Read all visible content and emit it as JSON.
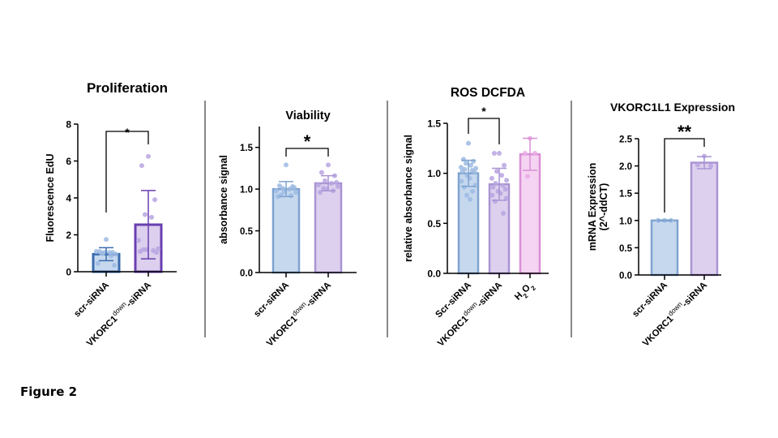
{
  "figure_label": "Figure 2",
  "colors": {
    "blue_fill": "#c5d8ee",
    "blue_edge": "#7fa3cf",
    "blue_dot": "#9dbbe3",
    "purple_fill": "#dcd0ee",
    "purple_edge": "#a993d3",
    "purple_dot": "#b7a4e0",
    "pink_fill": "#f5d3f2",
    "pink_edge": "#d98fd6",
    "pink_dot": "#eaa9e6",
    "dark_blue_edge": "#3a6cae",
    "dark_purple_edge": "#6a3fb0",
    "divider": "#888888"
  },
  "chart_data": [
    {
      "type": "bar",
      "title": "Proliferation",
      "xlabel": "",
      "ylabel": "Fluorescence EdU",
      "ylim": [
        0,
        8
      ],
      "yticks": [
        "0",
        "2",
        "4",
        "6",
        "8"
      ],
      "ytick_values": [
        0,
        2,
        4,
        6,
        8
      ],
      "categories": [
        "scr-siRNA",
        "VKORC1down-siRNA"
      ],
      "category_labels": [
        {
          "main": "scr-siRNA",
          "sup": "",
          "tail": ""
        },
        {
          "main": "VKORC1",
          "sup": "down",
          "tail": "-siRNA"
        }
      ],
      "values": [
        0.95,
        2.55
      ],
      "errors": [
        0.35,
        1.85
      ],
      "points": [
        [
          1.75,
          1.1,
          1.05,
          1.0,
          1.05,
          1.1,
          0.95,
          1.0,
          0.85,
          0.45,
          0.35,
          1.05
        ],
        [
          6.25,
          5.75,
          3.9,
          3.1,
          2.95,
          1.7,
          1.25,
          1.2,
          1.15,
          1.1,
          1.05,
          1.2
        ]
      ],
      "significance": [
        {
          "from": 0,
          "to": 1,
          "label": "*"
        }
      ],
      "bar_style": [
        "dark_blue",
        "dark_purple"
      ]
    },
    {
      "type": "bar",
      "title": "Viability",
      "xlabel": "",
      "ylabel": "absorbance signal",
      "ylim": [
        0,
        1.75
      ],
      "yticks": [
        "0.0",
        "0.5",
        "1.0",
        "1.5"
      ],
      "ytick_values": [
        0,
        0.5,
        1.0,
        1.5
      ],
      "categories": [
        "scr-siRNA",
        "VKORC1down-siRNA"
      ],
      "category_labels": [
        {
          "main": "scr-siRNA",
          "sup": "",
          "tail": ""
        },
        {
          "main": "VKORC1",
          "sup": "down",
          "tail": "-siRNA"
        }
      ],
      "values": [
        1.0,
        1.07
      ],
      "errors": [
        0.09,
        0.09
      ],
      "points": [
        [
          1.29,
          1.04,
          1.03,
          1.01,
          1.0,
          0.98,
          0.96,
          0.93,
          0.92,
          0.91,
          1.02,
          0.97
        ],
        [
          1.29,
          1.2,
          1.16,
          1.1,
          1.07,
          1.05,
          1.03,
          1.01,
          0.98,
          0.96,
          1.08,
          1.0
        ]
      ],
      "significance": [
        {
          "from": 0,
          "to": 1,
          "label": "*"
        }
      ],
      "bar_style": [
        "light_blue",
        "light_purple"
      ]
    },
    {
      "type": "bar",
      "title": "ROS DCFDA",
      "xlabel": "",
      "ylabel": "relative absorbance signal",
      "ylim": [
        0,
        1.5
      ],
      "yticks": [
        "0.0",
        "0.5",
        "1.0",
        "1.5"
      ],
      "ytick_values": [
        0,
        0.5,
        1.0,
        1.5
      ],
      "categories": [
        "Scr-siRNA",
        "VKORC1down-siRNA",
        "H2O2"
      ],
      "category_labels": [
        {
          "main": "Scr-siRNA",
          "sup": "",
          "tail": ""
        },
        {
          "main": "VKORC1",
          "sup": "down",
          "tail": "-siRNA"
        },
        {
          "main": "H",
          "sub": "2",
          "main2": "O",
          "sub2": "2"
        }
      ],
      "values": [
        1.0,
        0.89,
        1.19
      ],
      "errors": [
        0.13,
        0.16,
        0.16
      ],
      "points": [
        [
          1.3,
          1.14,
          1.12,
          1.1,
          1.08,
          1.06,
          1.05,
          1.04,
          1.03,
          1.02,
          1.01,
          0.98,
          0.95,
          0.92,
          0.88,
          0.86,
          0.82,
          0.78,
          0.74
        ],
        [
          1.2,
          1.2,
          1.08,
          1.02,
          0.98,
          0.95,
          0.93,
          0.9,
          0.88,
          0.86,
          0.84,
          0.82,
          0.8,
          0.78,
          0.75,
          0.72,
          0.6
        ],
        [
          1.35,
          1.2,
          1.2,
          0.97
        ]
      ],
      "significance": [
        {
          "from": 0,
          "to": 1,
          "label": "*"
        }
      ],
      "bar_style": [
        "light_blue",
        "light_purple",
        "light_pink"
      ]
    },
    {
      "type": "bar",
      "title": "VKORC1L1 Expression",
      "xlabel": "",
      "ylabel": "mRNA Expression",
      "ylabel2": "(2^-ddCT)",
      "ylim": [
        0,
        2.5
      ],
      "yticks": [
        "0.0",
        "0.5",
        "1.0",
        "1.5",
        "2.0",
        "2.5"
      ],
      "ytick_values": [
        0,
        0.5,
        1.0,
        1.5,
        2.0,
        2.5
      ],
      "categories": [
        "scr-siRNA",
        "VKORC1down-siRNA"
      ],
      "category_labels": [
        {
          "main": "scr-siRNA",
          "sup": "",
          "tail": ""
        },
        {
          "main": "VKORC1",
          "sup": "down",
          "tail": "-siRNA"
        }
      ],
      "values": [
        1.0,
        2.06
      ],
      "errors": [
        0.01,
        0.11
      ],
      "points": [
        [
          1.0,
          1.0,
          1.0
        ],
        [
          2.18,
          2.02,
          2.0
        ]
      ],
      "significance": [
        {
          "from": 0,
          "to": 1,
          "label": "**"
        }
      ],
      "bar_style": [
        "light_blue",
        "light_purple"
      ]
    }
  ]
}
